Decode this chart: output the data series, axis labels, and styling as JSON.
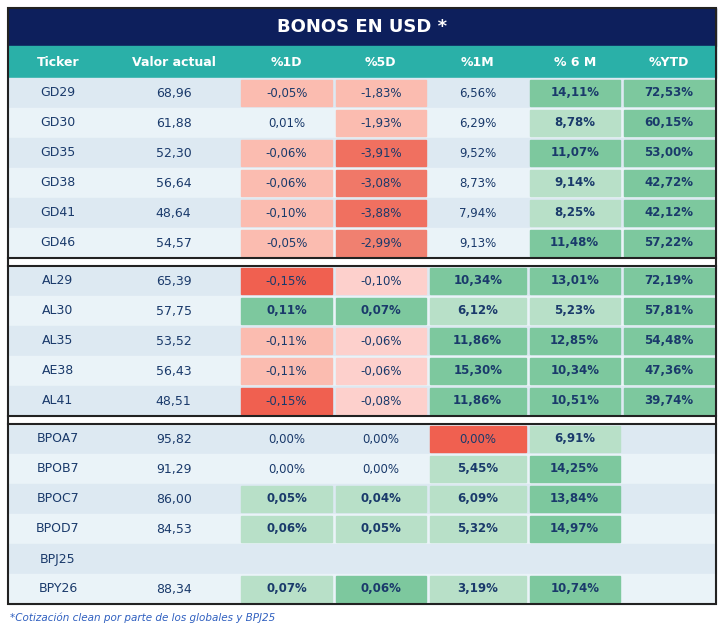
{
  "title": "BONOS EN USD *",
  "title_bg": "#0d1f5c",
  "title_color": "#ffffff",
  "header_bg": "#2ab0a8",
  "header_color": "#ffffff",
  "col_labels": [
    "Ticker",
    "Valor actual",
    "%1D",
    "%5D",
    "%1M",
    "% 6 M",
    "%YTD"
  ],
  "footnote": "*Cotización clean por parte de los globales y BPJ25",
  "groups": [
    {
      "rows": [
        {
          "ticker": "GD29",
          "valor": "68,96",
          "p1d": "-0,05%",
          "p5d": "-1,83%",
          "p1m": "6,56%",
          "p6m": "14,11%",
          "ytd": "72,53%"
        },
        {
          "ticker": "GD30",
          "valor": "61,88",
          "p1d": "0,01%",
          "p5d": "-1,93%",
          "p1m": "6,29%",
          "p6m": "8,78%",
          "ytd": "60,15%"
        },
        {
          "ticker": "GD35",
          "valor": "52,30",
          "p1d": "-0,06%",
          "p5d": "-3,91%",
          "p1m": "9,52%",
          "p6m": "11,07%",
          "ytd": "53,00%"
        },
        {
          "ticker": "GD38",
          "valor": "56,64",
          "p1d": "-0,06%",
          "p5d": "-3,08%",
          "p1m": "8,73%",
          "p6m": "9,14%",
          "ytd": "42,72%"
        },
        {
          "ticker": "GD41",
          "valor": "48,64",
          "p1d": "-0,10%",
          "p5d": "-3,88%",
          "p1m": "7,94%",
          "p6m": "8,25%",
          "ytd": "42,12%"
        },
        {
          "ticker": "GD46",
          "valor": "54,57",
          "p1d": "-0,05%",
          "p5d": "-2,99%",
          "p1m": "9,13%",
          "p6m": "11,48%",
          "ytd": "57,22%"
        }
      ],
      "colors": {
        "GD29": {
          "p1d": "#fbbcb0",
          "p5d": "#fbbcb0",
          "p1m": "none",
          "p6m": "#7dc89e",
          "ytd": "#7dc89e"
        },
        "GD30": {
          "p1d": "none",
          "p5d": "#fbbcb0",
          "p1m": "none",
          "p6m": "#b8e0c8",
          "ytd": "#7dc89e"
        },
        "GD35": {
          "p1d": "#fbbcb0",
          "p5d": "#f07060",
          "p1m": "none",
          "p6m": "#7dc89e",
          "ytd": "#7dc89e"
        },
        "GD38": {
          "p1d": "#fbbcb0",
          "p5d": "#f07868",
          "p1m": "none",
          "p6m": "#b8e0c8",
          "ytd": "#7dc89e"
        },
        "GD41": {
          "p1d": "#fbbcb0",
          "p5d": "#f07060",
          "p1m": "none",
          "p6m": "#b8e0c8",
          "ytd": "#7dc89e"
        },
        "GD46": {
          "p1d": "#fbbcb0",
          "p5d": "#f08070",
          "p1m": "none",
          "p6m": "#7dc89e",
          "ytd": "#7dc89e"
        }
      }
    },
    {
      "rows": [
        {
          "ticker": "AL29",
          "valor": "65,39",
          "p1d": "-0,15%",
          "p5d": "-0,10%",
          "p1m": "10,34%",
          "p6m": "13,01%",
          "ytd": "72,19%"
        },
        {
          "ticker": "AL30",
          "valor": "57,75",
          "p1d": "0,11%",
          "p5d": "0,07%",
          "p1m": "6,12%",
          "p6m": "5,23%",
          "ytd": "57,81%"
        },
        {
          "ticker": "AL35",
          "valor": "53,52",
          "p1d": "-0,11%",
          "p5d": "-0,06%",
          "p1m": "11,86%",
          "p6m": "12,85%",
          "ytd": "54,48%"
        },
        {
          "ticker": "AE38",
          "valor": "56,43",
          "p1d": "-0,11%",
          "p5d": "-0,06%",
          "p1m": "15,30%",
          "p6m": "10,34%",
          "ytd": "47,36%"
        },
        {
          "ticker": "AL41",
          "valor": "48,51",
          "p1d": "-0,15%",
          "p5d": "-0,08%",
          "p1m": "11,86%",
          "p6m": "10,51%",
          "ytd": "39,74%"
        }
      ],
      "colors": {
        "AL29": {
          "p1d": "#f06050",
          "p5d": "#fdd0cc",
          "p1m": "#7dc89e",
          "p6m": "#7dc89e",
          "ytd": "#7dc89e"
        },
        "AL30": {
          "p1d": "#7dc89e",
          "p5d": "#7dc89e",
          "p1m": "#b8e0c8",
          "p6m": "#b8e0c8",
          "ytd": "#7dc89e"
        },
        "AL35": {
          "p1d": "#fbbcb0",
          "p5d": "#fdd0cc",
          "p1m": "#7dc89e",
          "p6m": "#7dc89e",
          "ytd": "#7dc89e"
        },
        "AE38": {
          "p1d": "#fbbcb0",
          "p5d": "#fdd0cc",
          "p1m": "#7dc89e",
          "p6m": "#7dc89e",
          "ytd": "#7dc89e"
        },
        "AL41": {
          "p1d": "#f06050",
          "p5d": "#fdd0cc",
          "p1m": "#7dc89e",
          "p6m": "#7dc89e",
          "ytd": "#7dc89e"
        }
      }
    },
    {
      "rows": [
        {
          "ticker": "BPOA7",
          "valor": "95,82",
          "p1d": "0,00%",
          "p5d": "0,00%",
          "p1m": "0,00%",
          "p6m": "6,91%",
          "ytd": ""
        },
        {
          "ticker": "BPOB7",
          "valor": "91,29",
          "p1d": "0,00%",
          "p5d": "0,00%",
          "p1m": "5,45%",
          "p6m": "14,25%",
          "ytd": ""
        },
        {
          "ticker": "BPOC7",
          "valor": "86,00",
          "p1d": "0,05%",
          "p5d": "0,04%",
          "p1m": "6,09%",
          "p6m": "13,84%",
          "ytd": ""
        },
        {
          "ticker": "BPOD7",
          "valor": "84,53",
          "p1d": "0,06%",
          "p5d": "0,05%",
          "p1m": "5,32%",
          "p6m": "14,97%",
          "ytd": ""
        },
        {
          "ticker": "BPJ25",
          "valor": "",
          "p1d": "",
          "p5d": "",
          "p1m": "",
          "p6m": "",
          "ytd": ""
        },
        {
          "ticker": "BPY26",
          "valor": "88,34",
          "p1d": "0,07%",
          "p5d": "0,06%",
          "p1m": "3,19%",
          "p6m": "10,74%",
          "ytd": ""
        }
      ],
      "colors": {
        "BPOA7": {
          "p1d": "none",
          "p5d": "none",
          "p1m": "#f06050",
          "p6m": "#b8e0c8",
          "ytd": "none"
        },
        "BPOB7": {
          "p1d": "none",
          "p5d": "none",
          "p1m": "#b8e0c8",
          "p6m": "#7dc89e",
          "ytd": "none"
        },
        "BPOC7": {
          "p1d": "#b8e0c8",
          "p5d": "#b8e0c8",
          "p1m": "#b8e0c8",
          "p6m": "#7dc89e",
          "ytd": "none"
        },
        "BPOD7": {
          "p1d": "#b8e0c8",
          "p5d": "#b8e0c8",
          "p1m": "#b8e0c8",
          "p6m": "#7dc89e",
          "ytd": "none"
        },
        "BPJ25": {
          "p1d": "none",
          "p5d": "none",
          "p1m": "none",
          "p6m": "none",
          "ytd": "none"
        },
        "BPY26": {
          "p1d": "#b8e0c8",
          "p5d": "#7dc89e",
          "p1m": "#b8e0c8",
          "p6m": "#7dc89e",
          "ytd": "none"
        }
      }
    }
  ],
  "row_bg_alt": [
    "#dde9f2",
    "#eaf3f8"
  ],
  "sep_color": "#222222",
  "text_color": "#1a3a6b",
  "footnote_color": "#3060c0"
}
